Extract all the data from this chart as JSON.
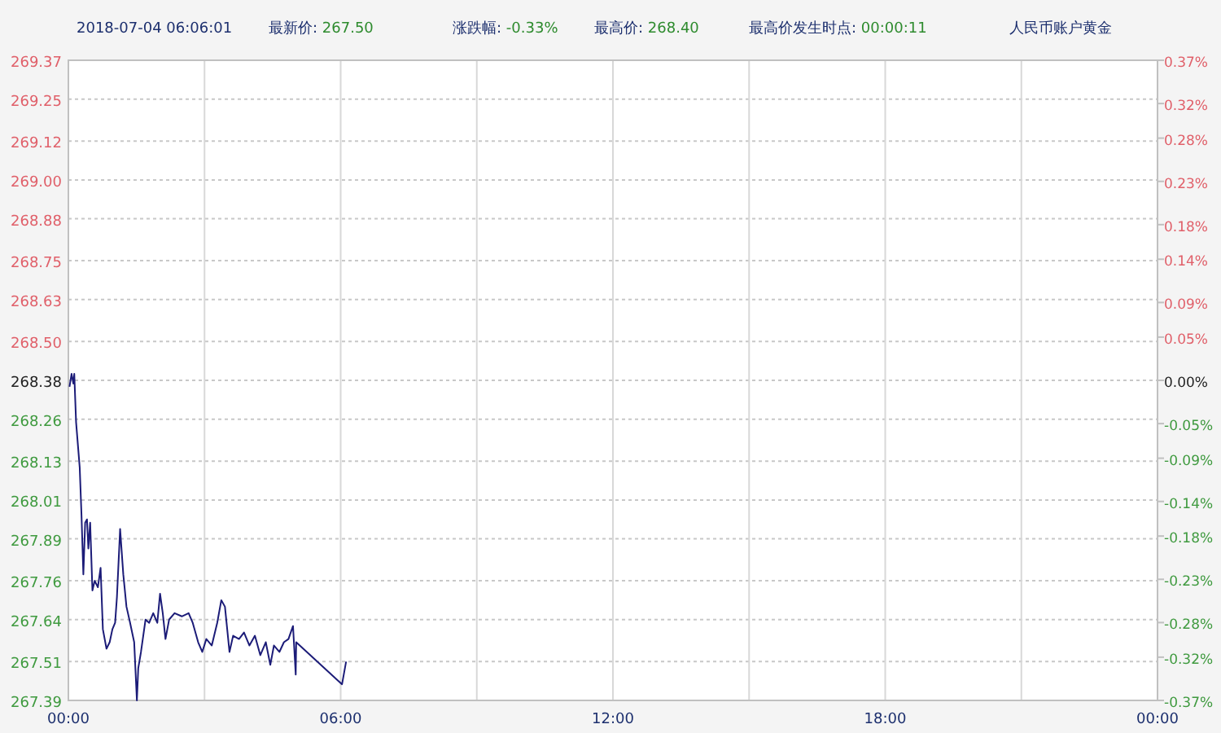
{
  "chart_data": {
    "type": "line",
    "annotations": [
      "2018-07-04 06:06:01",
      "最新价: 267.50",
      "涨跌幅: -0.33%",
      "最高价: 268.40",
      "最高价发生时点: 00:00:11",
      "人民币账户黄金"
    ],
    "series": [
      {
        "color": "#1c1c78",
        "x": [
          0.025,
          0.07,
          0.11,
          0.13,
          0.17,
          0.25,
          0.29,
          0.33,
          0.37,
          0.41,
          0.44,
          0.48,
          0.53,
          0.58,
          0.65,
          0.71,
          0.76,
          0.84,
          0.91,
          0.97,
          1.03,
          1.07,
          1.14,
          1.21,
          1.28,
          1.36,
          1.45,
          1.51,
          1.54,
          1.6,
          1.7,
          1.78,
          1.87,
          1.96,
          2.02,
          2.08,
          2.14,
          2.22,
          2.34,
          2.5,
          2.65,
          2.74,
          2.86,
          2.95,
          3.04,
          3.16,
          3.28,
          3.37,
          3.45,
          3.55,
          3.63,
          3.76,
          3.87,
          3.99,
          4.11,
          4.23,
          4.35,
          4.45,
          4.53,
          4.65,
          4.75,
          4.85,
          4.95,
          5.01,
          5.02,
          6.03,
          6.12
        ],
        "values": [
          268.36,
          268.4,
          268.37,
          268.4,
          268.25,
          268.11,
          267.96,
          267.78,
          267.94,
          267.95,
          267.86,
          267.94,
          267.73,
          267.76,
          267.74,
          267.8,
          267.61,
          267.55,
          267.57,
          267.61,
          267.63,
          267.71,
          267.92,
          267.78,
          267.68,
          267.63,
          267.57,
          267.39,
          267.49,
          267.54,
          267.64,
          267.63,
          267.66,
          267.63,
          267.72,
          267.66,
          267.58,
          267.64,
          267.66,
          267.65,
          267.66,
          267.63,
          267.57,
          267.54,
          267.58,
          267.56,
          267.63,
          267.7,
          267.68,
          267.54,
          267.59,
          267.58,
          267.6,
          267.56,
          267.59,
          267.53,
          267.57,
          267.5,
          267.56,
          267.54,
          267.57,
          267.58,
          267.62,
          267.47,
          267.57,
          267.44,
          267.51
        ]
      }
    ],
    "xlim": [
      0,
      24
    ],
    "xticks": [
      {
        "value": 0,
        "label": "00:00"
      },
      {
        "value": 3,
        "label": null
      },
      {
        "value": 6,
        "label": "06:00"
      },
      {
        "value": 9,
        "label": null
      },
      {
        "value": 12,
        "label": "12:00"
      },
      {
        "value": 15,
        "label": null
      },
      {
        "value": 18,
        "label": "18:00"
      },
      {
        "value": 21,
        "label": null
      },
      {
        "value": 24,
        "label": "00:00"
      }
    ],
    "ylim": [
      267.39,
      269.37
    ],
    "yticks": [
      267.39,
      267.51,
      267.64,
      267.76,
      267.89,
      268.01,
      268.13,
      268.26,
      268.38,
      {
        "value": 268.5,
        "label": "268.50"
      },
      268.63,
      268.75,
      268.88,
      {
        "value": 269,
        "label": "269.00"
      },
      269.12,
      269.25,
      269.37
    ],
    "y2lim": [
      -0.37,
      0.37
    ],
    "y2ticks": [
      {
        "value": -0.37,
        "label": "-0.37%"
      },
      {
        "value": -0.32,
        "label": "-0.32%"
      },
      {
        "value": -0.28,
        "label": "-0.28%"
      },
      {
        "value": -0.23,
        "label": "-0.23%"
      },
      {
        "value": -0.18,
        "label": "-0.18%"
      },
      {
        "value": -0.14,
        "label": "-0.14%"
      },
      {
        "value": -0.09,
        "label": "-0.09%"
      },
      {
        "value": -0.05,
        "label": "-0.05%"
      },
      {
        "value": 0,
        "label": "0.00%"
      },
      {
        "value": 0.05,
        "label": "0.05%"
      },
      {
        "value": 0.09,
        "label": "0.09%"
      },
      {
        "value": 0.14,
        "label": "0.14%"
      },
      {
        "value": 0.18,
        "label": "0.18%"
      },
      {
        "value": 0.23,
        "label": "0.23%"
      },
      {
        "value": 0.28,
        "label": "0.28%"
      },
      {
        "value": 0.32,
        "label": "0.32%"
      },
      {
        "value": 0.37,
        "label": "0.37%"
      }
    ],
    "grid": true,
    "marker": "none",
    "line_style": "solid"
  }
}
